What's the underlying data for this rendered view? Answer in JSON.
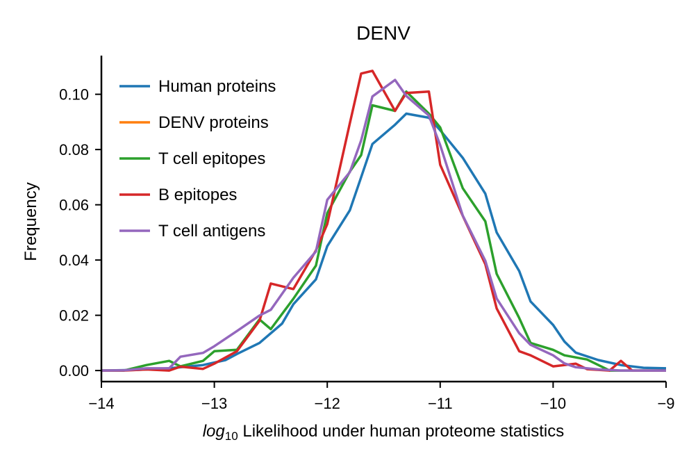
{
  "chart_data": {
    "type": "line",
    "title": "DENV",
    "xlabel_math": "log",
    "xlabel_sub": "10",
    "xlabel_rest": " Likelihood under human proteome statistics",
    "ylabel": "Frequency",
    "xlim": [
      -14,
      -9
    ],
    "ylim": [
      -0.004,
      0.114
    ],
    "x_ticks": [
      -14,
      -13,
      -12,
      -11,
      -10,
      -9
    ],
    "x_tick_labels": [
      "−14",
      "−13",
      "−12",
      "−11",
      "−10",
      "−9"
    ],
    "y_ticks": [
      0.0,
      0.02,
      0.04,
      0.06,
      0.08,
      0.1
    ],
    "y_tick_labels": [
      "0.00",
      "0.02",
      "0.04",
      "0.06",
      "0.08",
      "0.10"
    ],
    "legend_position": "upper-left",
    "grid": false,
    "series": [
      {
        "name": "Human proteins",
        "color": "#1f77b4",
        "points": [
          [
            -14.0,
            0.0
          ],
          [
            -13.7,
            0.0002
          ],
          [
            -13.4,
            0.0008
          ],
          [
            -13.1,
            0.002
          ],
          [
            -12.9,
            0.0038
          ],
          [
            -12.8,
            0.006
          ],
          [
            -12.6,
            0.01
          ],
          [
            -12.4,
            0.017
          ],
          [
            -12.3,
            0.024
          ],
          [
            -12.1,
            0.033
          ],
          [
            -12.0,
            0.045
          ],
          [
            -11.8,
            0.058
          ],
          [
            -11.7,
            0.07
          ],
          [
            -11.6,
            0.082
          ],
          [
            -11.4,
            0.089
          ],
          [
            -11.3,
            0.093
          ],
          [
            -11.1,
            0.0915
          ],
          [
            -11.0,
            0.087
          ],
          [
            -10.8,
            0.077
          ],
          [
            -10.6,
            0.064
          ],
          [
            -10.5,
            0.05
          ],
          [
            -10.3,
            0.036
          ],
          [
            -10.2,
            0.025
          ],
          [
            -10.0,
            0.0165
          ],
          [
            -9.9,
            0.0105
          ],
          [
            -9.8,
            0.0065
          ],
          [
            -9.6,
            0.0038
          ],
          [
            -9.4,
            0.002
          ],
          [
            -9.2,
            0.001
          ],
          [
            -9.0,
            0.0008
          ]
        ]
      },
      {
        "name": "DENV proteins",
        "color": "#ff7f0e",
        "points": []
      },
      {
        "name": "T cell epitopes",
        "color": "#2ca02c",
        "points": [
          [
            -14.0,
            0.0
          ],
          [
            -13.8,
            0.0
          ],
          [
            -13.6,
            0.002
          ],
          [
            -13.4,
            0.0035
          ],
          [
            -13.3,
            0.0015
          ],
          [
            -13.1,
            0.0035
          ],
          [
            -13.0,
            0.007
          ],
          [
            -12.8,
            0.0075
          ],
          [
            -12.6,
            0.0185
          ],
          [
            -12.5,
            0.015
          ],
          [
            -12.3,
            0.026
          ],
          [
            -12.1,
            0.038
          ],
          [
            -12.0,
            0.057
          ],
          [
            -11.8,
            0.072
          ],
          [
            -11.7,
            0.078
          ],
          [
            -11.6,
            0.096
          ],
          [
            -11.4,
            0.094
          ],
          [
            -11.3,
            0.101
          ],
          [
            -11.1,
            0.093
          ],
          [
            -11.0,
            0.088
          ],
          [
            -10.8,
            0.066
          ],
          [
            -10.6,
            0.054
          ],
          [
            -10.5,
            0.035
          ],
          [
            -10.3,
            0.019
          ],
          [
            -10.2,
            0.01
          ],
          [
            -10.0,
            0.0075
          ],
          [
            -9.9,
            0.0055
          ],
          [
            -9.7,
            0.004
          ],
          [
            -9.5,
            0.0
          ],
          [
            -9.3,
            0.0
          ],
          [
            -9.0,
            0.0
          ]
        ]
      },
      {
        "name": "B epitopes",
        "color": "#d62728",
        "points": [
          [
            -14.0,
            0.0
          ],
          [
            -13.8,
            0.0
          ],
          [
            -13.6,
            0.0004
          ],
          [
            -13.4,
            0.0
          ],
          [
            -13.3,
            0.0014
          ],
          [
            -13.1,
            0.0006
          ],
          [
            -13.0,
            0.0025
          ],
          [
            -12.8,
            0.007
          ],
          [
            -12.6,
            0.018
          ],
          [
            -12.5,
            0.0315
          ],
          [
            -12.3,
            0.0295
          ],
          [
            -12.1,
            0.0435
          ],
          [
            -12.0,
            0.053
          ],
          [
            -11.8,
            0.0895
          ],
          [
            -11.7,
            0.1075
          ],
          [
            -11.6,
            0.1085
          ],
          [
            -11.4,
            0.094
          ],
          [
            -11.3,
            0.1005
          ],
          [
            -11.1,
            0.101
          ],
          [
            -11.0,
            0.0745
          ],
          [
            -10.8,
            0.056
          ],
          [
            -10.6,
            0.0385
          ],
          [
            -10.5,
            0.0225
          ],
          [
            -10.3,
            0.007
          ],
          [
            -10.2,
            0.0055
          ],
          [
            -10.0,
            0.0015
          ],
          [
            -9.8,
            0.0025
          ],
          [
            -9.7,
            0.0005
          ],
          [
            -9.5,
            0.0
          ],
          [
            -9.4,
            0.0035
          ],
          [
            -9.3,
            0.0
          ],
          [
            -9.0,
            0.0
          ]
        ]
      },
      {
        "name": "T cell antigens",
        "color": "#9467bd",
        "points": [
          [
            -14.0,
            0.0
          ],
          [
            -13.8,
            0.0001
          ],
          [
            -13.6,
            0.0008
          ],
          [
            -13.4,
            0.0008
          ],
          [
            -13.3,
            0.005
          ],
          [
            -13.1,
            0.0064
          ],
          [
            -13.0,
            0.0088
          ],
          [
            -12.8,
            0.0143
          ],
          [
            -12.6,
            0.0199
          ],
          [
            -12.5,
            0.022
          ],
          [
            -12.3,
            0.0336
          ],
          [
            -12.1,
            0.0431
          ],
          [
            -12.0,
            0.0618
          ],
          [
            -11.8,
            0.0718
          ],
          [
            -11.7,
            0.0833
          ],
          [
            -11.6,
            0.0992
          ],
          [
            -11.4,
            0.1052
          ],
          [
            -11.3,
            0.0994
          ],
          [
            -11.1,
            0.0923
          ],
          [
            -11.0,
            0.0816
          ],
          [
            -10.8,
            0.0561
          ],
          [
            -10.6,
            0.0397
          ],
          [
            -10.5,
            0.0261
          ],
          [
            -10.3,
            0.0135
          ],
          [
            -10.2,
            0.0093
          ],
          [
            -10.0,
            0.0055
          ],
          [
            -9.9,
            0.0026
          ],
          [
            -9.8,
            0.0012
          ],
          [
            -9.6,
            0.0004
          ],
          [
            -9.4,
            0.0
          ],
          [
            -9.0,
            0.0
          ]
        ]
      }
    ]
  }
}
